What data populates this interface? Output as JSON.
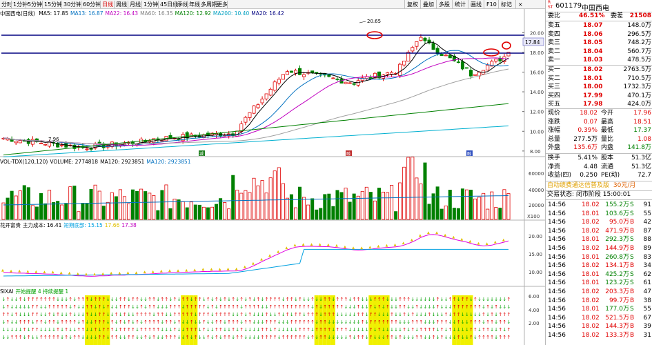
{
  "toolbar": {
    "periods": [
      "分时",
      "1分钟",
      "5分钟",
      "15分钟",
      "30分钟",
      "60分钟",
      "日线",
      "周线",
      "月线",
      "1分钟",
      "45日线",
      "季线",
      "年线",
      "多周期",
      "更多"
    ],
    "active_index": 6,
    "right_buttons": [
      "复权",
      "叠加",
      "多股",
      "统计",
      "画线",
      "F10",
      "标记"
    ]
  },
  "main_indicator": {
    "title": "中国西电(日线)",
    "items": [
      {
        "label": "MA5: 17.85",
        "color": "#000000"
      },
      {
        "label": "MA13: 16.87",
        "color": "#0070c0"
      },
      {
        "label": "MA22: 16.43",
        "color": "#c000c0"
      },
      {
        "label": "MA60: 16.35",
        "color": "#808080"
      },
      {
        "label": "MA120: 12.92",
        "color": "#008000"
      },
      {
        "label": "MA200: 10.40",
        "color": "#00a0c0"
      },
      {
        "label": "MA20: 16.42",
        "color": "#000080"
      }
    ],
    "high_label": "20.65",
    "low_label": "7.96",
    "price_label": "17.84",
    "markers": [
      "减",
      "融",
      "融"
    ]
  },
  "price_axis": [
    "20.00",
    "18.00",
    "16.00",
    "14.00",
    "12.00",
    "10.00",
    "8.00"
  ],
  "volume_indicator": {
    "items": [
      {
        "label": "VOL-TDX(120,120)",
        "color": "#000000"
      },
      {
        "label": "VOLUME: 2774818",
        "color": "#000000"
      },
      {
        "label": "MA120: 2923851",
        "color": "#000000"
      },
      {
        "label": "MA120: 2923851",
        "color": "#0070c0"
      }
    ],
    "axis": [
      "60000",
      "40000",
      "20000"
    ],
    "unit": "X100"
  },
  "cost_indicator": {
    "items": [
      {
        "label": "花开富贵",
        "color": "#000000"
      },
      {
        "label": "主力成本: 16.41",
        "color": "#000000"
      },
      {
        "label": "短期底部: 15.15",
        "color": "#00a0e0"
      },
      {
        "label": "17.66",
        "color": "#e0c000"
      },
      {
        "label": "17.38",
        "color": "#c000c0"
      }
    ],
    "axis": [
      "20.00",
      "15.00",
      "10.00"
    ]
  },
  "sixai_indicator": {
    "items": [
      {
        "label": "SIXAI",
        "color": "#000000"
      },
      {
        "label": "开始提醒 4 持续提醒 1",
        "color": "#00a000"
      }
    ],
    "axis": [
      "6.00",
      "4.00",
      "2.00"
    ]
  },
  "quote": {
    "code": "601179",
    "name": "中国西电",
    "commission_ratio_label": "委比",
    "commission_ratio": "46.51%",
    "commission_diff_label": "委差",
    "commission_diff": "21508",
    "asks": [
      {
        "label": "卖五",
        "price": "18.07",
        "vol": "148.0万"
      },
      {
        "label": "卖四",
        "price": "18.06",
        "vol": "296.5万"
      },
      {
        "label": "卖三",
        "price": "18.05",
        "vol": "748.2万"
      },
      {
        "label": "卖二",
        "price": "18.04",
        "vol": "560.7万"
      },
      {
        "label": "卖一",
        "price": "18.03",
        "vol": "478.5万"
      }
    ],
    "bids": [
      {
        "label": "买一",
        "price": "18.02",
        "vol": "2763.5万"
      },
      {
        "label": "买二",
        "price": "18.01",
        "vol": "710.5万"
      },
      {
        "label": "买三",
        "price": "18.00",
        "vol": "1732.3万"
      },
      {
        "label": "买四",
        "price": "17.99",
        "vol": "470.1万"
      },
      {
        "label": "买五",
        "price": "17.98",
        "vol": "424.0万"
      }
    ],
    "stats": [
      {
        "l1": "现价",
        "v1": "18.02",
        "c1": "red",
        "l2": "今开",
        "v2": "17.96",
        "c2": "red"
      },
      {
        "l1": "涨跌",
        "v1": "0.07",
        "c1": "red",
        "l2": "最高",
        "v2": "18.51",
        "c2": "red"
      },
      {
        "l1": "涨幅",
        "v1": "0.39%",
        "c1": "red",
        "l2": "最低",
        "v2": "17.37",
        "c2": "green"
      },
      {
        "l1": "总量",
        "v1": "277.5万",
        "c1": "black",
        "l2": "量比",
        "v2": "1.08",
        "c2": "red"
      },
      {
        "l1": "外盘",
        "v1": "135.6万",
        "c1": "red",
        "l2": "内盘",
        "v2": "141.8万",
        "c2": "green"
      }
    ],
    "stats2": [
      {
        "l1": "换手",
        "v1": "5.41%",
        "l2": "股本",
        "v2": "51.3亿"
      },
      {
        "l1": "净资",
        "v1": "4.48",
        "l2": "流通",
        "v2": "51.3亿"
      },
      {
        "l1": "收益(四)",
        "v1": "0.250",
        "l2": "PE(动)",
        "v2": "72.7"
      }
    ],
    "ad_text": "自动绩费通达信普及版",
    "ad_price": "30元/月",
    "trade_status": "交易状态: 闭市阶段 15:00:01",
    "ticks": [
      {
        "time": "14:56",
        "price": "18.02",
        "vol": "155.2万",
        "side": "S",
        "n": "91"
      },
      {
        "time": "14:56",
        "price": "18.01",
        "vol": "103.6万",
        "side": "S",
        "n": "55"
      },
      {
        "time": "14:56",
        "price": "18.02",
        "vol": "95.0万",
        "side": "B",
        "n": "42"
      },
      {
        "time": "14:56",
        "price": "18.02",
        "vol": "471.9万",
        "side": "B",
        "n": "87"
      },
      {
        "time": "14:56",
        "price": "18.01",
        "vol": "292.3万",
        "side": "S",
        "n": "88"
      },
      {
        "time": "14:56",
        "price": "18.02",
        "vol": "144.9万",
        "side": "B",
        "n": "89"
      },
      {
        "time": "14:56",
        "price": "18.01",
        "vol": "260.8万",
        "side": "S",
        "n": "83"
      },
      {
        "time": "14:56",
        "price": "18.02",
        "vol": "134.1万",
        "side": "B",
        "n": "34"
      },
      {
        "time": "14:56",
        "price": "18.01",
        "vol": "425.2万",
        "side": "S",
        "n": "62"
      },
      {
        "time": "14:56",
        "price": "18.01",
        "vol": "123.2万",
        "side": "S",
        "n": "61"
      },
      {
        "time": "14:56",
        "price": "18.02",
        "vol": "203.3万",
        "side": "B",
        "n": "47"
      },
      {
        "time": "14:56",
        "price": "18.02",
        "vol": "99.7万",
        "side": "B",
        "n": "38"
      },
      {
        "time": "14:56",
        "price": "18.01",
        "vol": "177.0万",
        "side": "S",
        "n": "55"
      },
      {
        "time": "14:56",
        "price": "18.02",
        "vol": "521.5万",
        "side": "B",
        "n": "67"
      },
      {
        "time": "14:56",
        "price": "18.02",
        "vol": "144.3万",
        "side": "B",
        "n": "39"
      },
      {
        "time": "14:56",
        "price": "18.02",
        "vol": "133.3万",
        "side": "B",
        "n": "31"
      }
    ]
  },
  "colors": {
    "up": "#e00000",
    "down": "#008000",
    "ma_black": "#000000",
    "ma_blue": "#0070c0",
    "ma_purple": "#c000c0",
    "ma_gray": "#a0a0a0",
    "ma_green": "#008000",
    "ma_cyan": "#00b0d0",
    "hline": "#000080"
  }
}
